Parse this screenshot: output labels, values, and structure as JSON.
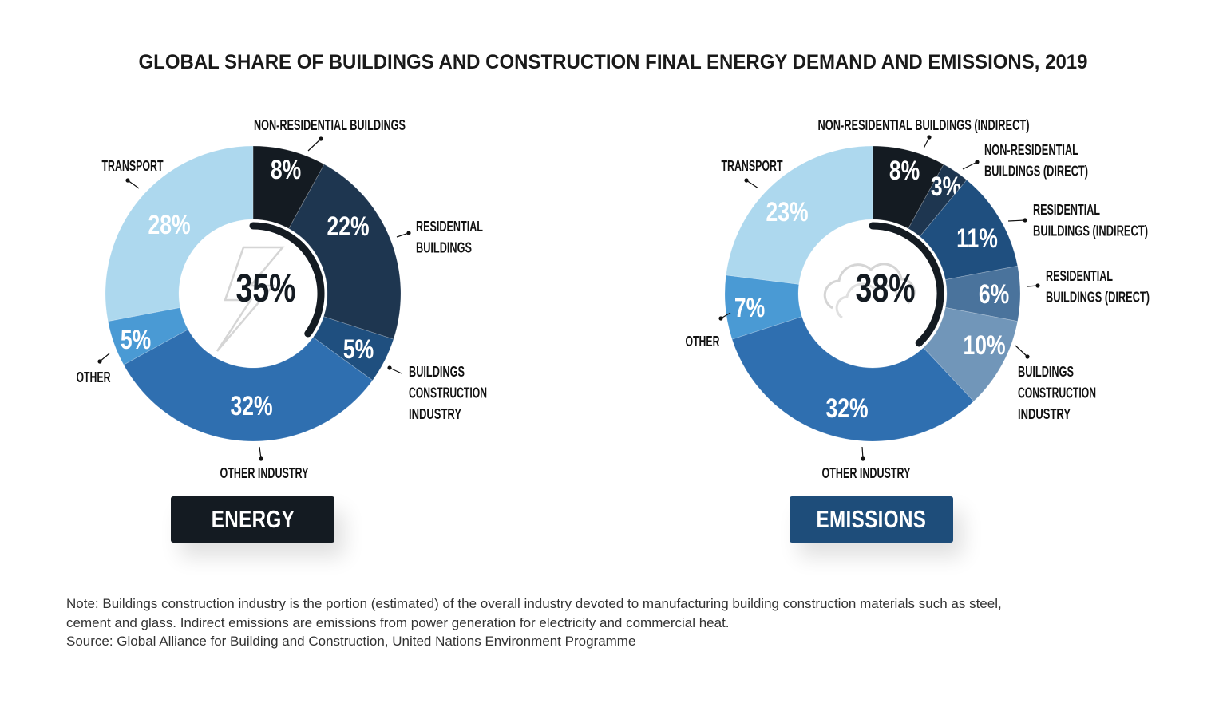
{
  "title": "GLOBAL SHARE OF BUILDINGS AND CONSTRUCTION FINAL ENERGY DEMAND AND EMISSIONS, 2019",
  "chart_data": [
    {
      "type": "pie",
      "subtype": "donut",
      "title": "ENERGY",
      "center_value": "35%",
      "center_icon": "lightning-bolt-icon",
      "tag_color": "#141b22",
      "slices": [
        {
          "label_lines": [
            "NON-RESIDENTIAL BUILDINGS"
          ],
          "value": 8,
          "color": "#141b22"
        },
        {
          "label_lines": [
            "RESIDENTIAL",
            "BUILDINGS"
          ],
          "value": 22,
          "color": "#1e3650"
        },
        {
          "label_lines": [
            "BUILDINGS",
            "CONSTRUCTION",
            "INDUSTRY"
          ],
          "value": 5,
          "color": "#1f4f7f"
        },
        {
          "label_lines": [
            "OTHER INDUSTRY"
          ],
          "value": 32,
          "color": "#2f6fb0"
        },
        {
          "label_lines": [
            "OTHER"
          ],
          "value": 5,
          "color": "#4a9ad4"
        },
        {
          "label_lines": [
            "TRANSPORT"
          ],
          "value": 28,
          "color": "#add8ee"
        }
      ]
    },
    {
      "type": "pie",
      "subtype": "donut",
      "title": "EMISSIONS",
      "center_value": "38%",
      "center_icon": "cloud-icon",
      "tag_color": "#1e4d7a",
      "slices": [
        {
          "label_lines": [
            "NON-RESIDENTIAL BUILDINGS (INDIRECT)"
          ],
          "value": 8,
          "color": "#141b22"
        },
        {
          "label_lines": [
            "NON-RESIDENTIAL",
            "BUILDINGS (DIRECT)"
          ],
          "value": 3,
          "color": "#1e3650"
        },
        {
          "label_lines": [
            "RESIDENTIAL",
            "BUILDINGS (INDIRECT)"
          ],
          "value": 11,
          "color": "#1f4f7f"
        },
        {
          "label_lines": [
            "RESIDENTIAL",
            "BUILDINGS (DIRECT)"
          ],
          "value": 6,
          "color": "#4a739c"
        },
        {
          "label_lines": [
            "BUILDINGS",
            "CONSTRUCTION",
            "INDUSTRY"
          ],
          "value": 10,
          "color": "#7196b9"
        },
        {
          "label_lines": [
            "OTHER INDUSTRY"
          ],
          "value": 32,
          "color": "#2f6fb0"
        },
        {
          "label_lines": [
            "OTHER"
          ],
          "value": 7,
          "color": "#4a9ad4"
        },
        {
          "label_lines": [
            "TRANSPORT"
          ],
          "value": 23,
          "color": "#add8ee"
        }
      ]
    }
  ],
  "notes": [
    "Note: Buildings construction industry is the portion (estimated) of the overall industry devoted to manufacturing building construction materials such as steel,",
    "cement and glass. Indirect emissions are emissions from power generation for electricity and commercial heat.",
    "Source: Global Alliance for Building and Construction, United Nations Environment Programme"
  ]
}
